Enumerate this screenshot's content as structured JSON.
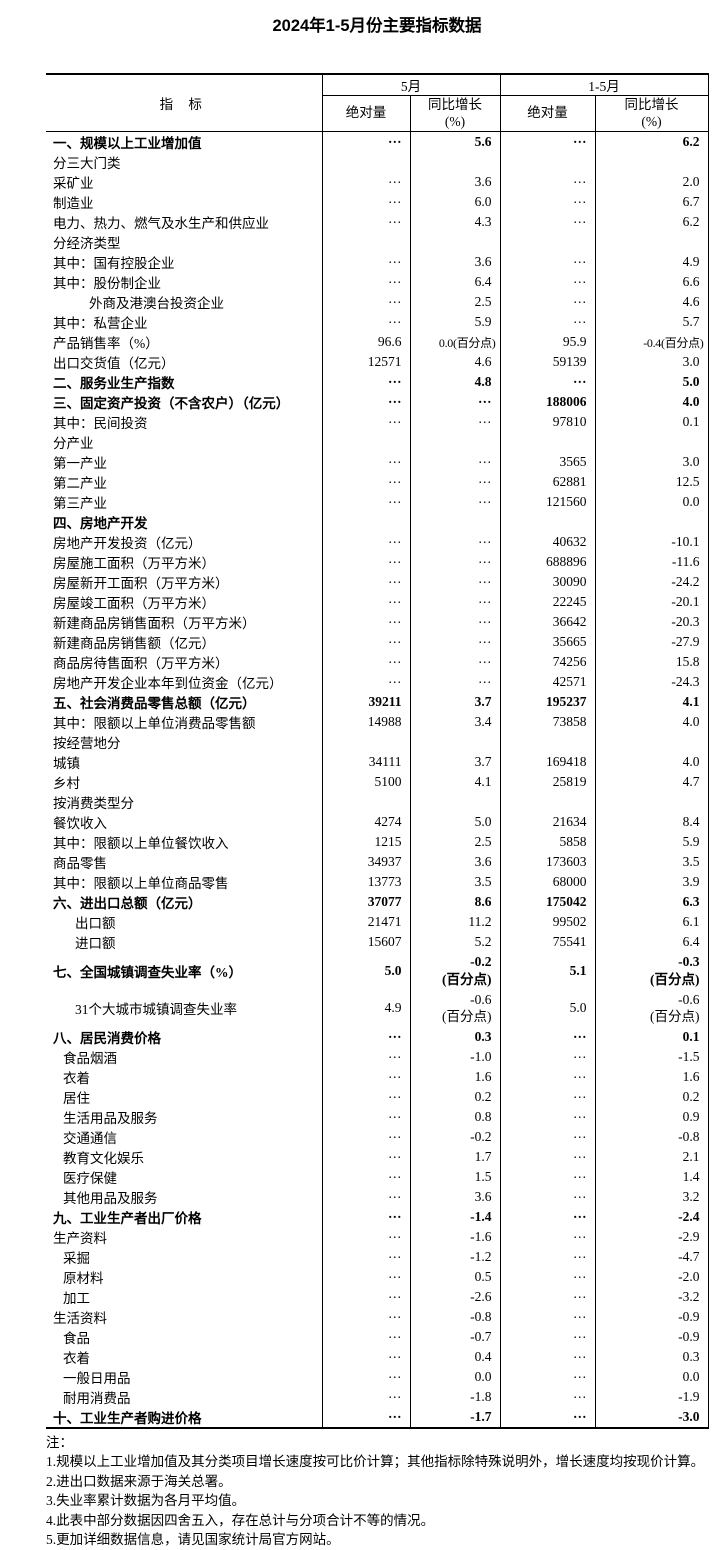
{
  "page": {
    "title": "2024年1-5月份主要指标数据"
  },
  "table": {
    "indicator_header": "指 标",
    "period_groups": [
      {
        "label": "5月"
      },
      {
        "label": "1-5月"
      }
    ],
    "sub_headers": [
      "绝对量",
      "同比增长\n(%)",
      "绝对量",
      "同比增长\n(%)"
    ],
    "rows": [
      {
        "label": "一、规模以上工业增加值",
        "bold": true,
        "indent": 0,
        "tall": false,
        "values": [
          "…",
          "5.6",
          "…",
          "6.2"
        ]
      },
      {
        "label": "分三大门类",
        "bold": false,
        "indent": 0,
        "tall": false,
        "values": [
          "",
          "",
          "",
          ""
        ]
      },
      {
        "label": "采矿业",
        "bold": false,
        "indent": 0,
        "tall": false,
        "values": [
          "…",
          "3.6",
          "…",
          "2.0"
        ]
      },
      {
        "label": "制造业",
        "bold": false,
        "indent": 0,
        "tall": false,
        "values": [
          "…",
          "6.0",
          "…",
          "6.7"
        ]
      },
      {
        "label": "电力、热力、燃气及水生产和供应业",
        "bold": false,
        "indent": 0,
        "tall": false,
        "values": [
          "…",
          "4.3",
          "…",
          "6.2"
        ]
      },
      {
        "label": "分经济类型",
        "bold": false,
        "indent": 0,
        "tall": false,
        "values": [
          "",
          "",
          "",
          ""
        ]
      },
      {
        "label": "其中：国有控股企业",
        "bold": false,
        "indent": 0,
        "tall": false,
        "values": [
          "…",
          "3.6",
          "…",
          "4.9"
        ]
      },
      {
        "label": "其中：股份制企业",
        "bold": false,
        "indent": 0,
        "tall": false,
        "values": [
          "…",
          "6.4",
          "…",
          "6.6"
        ]
      },
      {
        "label": "外商及港澳台投资企业",
        "bold": false,
        "indent": 3,
        "tall": false,
        "values": [
          "…",
          "2.5",
          "…",
          "4.6"
        ]
      },
      {
        "label": "其中：私营企业",
        "bold": false,
        "indent": 0,
        "tall": false,
        "values": [
          "…",
          "5.9",
          "…",
          "5.7"
        ]
      },
      {
        "label": "产品销售率（%）",
        "bold": false,
        "indent": 0,
        "tall": false,
        "values": [
          "96.6",
          "0.0(百分点)",
          "95.9",
          "-0.4(百分点)"
        ]
      },
      {
        "label": "出口交货值（亿元）",
        "bold": false,
        "indent": 0,
        "tall": false,
        "values": [
          "12571",
          "4.6",
          "59139",
          "3.0"
        ]
      },
      {
        "label": "二、服务业生产指数",
        "bold": true,
        "indent": 0,
        "tall": false,
        "values": [
          "…",
          "4.8",
          "…",
          "5.0"
        ]
      },
      {
        "label": "三、固定资产投资（不含农户）（亿元）",
        "bold": true,
        "indent": 0,
        "tall": false,
        "values": [
          "…",
          "…",
          "188006",
          "4.0"
        ]
      },
      {
        "label": "其中：民间投资",
        "bold": false,
        "indent": 0,
        "tall": false,
        "values": [
          "…",
          "…",
          "97810",
          "0.1"
        ]
      },
      {
        "label": "分产业",
        "bold": false,
        "indent": 0,
        "tall": false,
        "values": [
          "",
          "",
          "",
          ""
        ]
      },
      {
        "label": "第一产业",
        "bold": false,
        "indent": 0,
        "tall": false,
        "values": [
          "…",
          "…",
          "3565",
          "3.0"
        ]
      },
      {
        "label": "第二产业",
        "bold": false,
        "indent": 0,
        "tall": false,
        "values": [
          "…",
          "…",
          "62881",
          "12.5"
        ]
      },
      {
        "label": "第三产业",
        "bold": false,
        "indent": 0,
        "tall": false,
        "values": [
          "…",
          "…",
          "121560",
          "0.0"
        ]
      },
      {
        "label": "四、房地产开发",
        "bold": true,
        "indent": 0,
        "tall": false,
        "values": [
          "",
          "",
          "",
          ""
        ]
      },
      {
        "label": "房地产开发投资（亿元）",
        "bold": false,
        "indent": 0,
        "tall": false,
        "values": [
          "…",
          "…",
          "40632",
          "-10.1"
        ]
      },
      {
        "label": "房屋施工面积（万平方米）",
        "bold": false,
        "indent": 0,
        "tall": false,
        "values": [
          "…",
          "…",
          "688896",
          "-11.6"
        ]
      },
      {
        "label": "房屋新开工面积（万平方米）",
        "bold": false,
        "indent": 0,
        "tall": false,
        "values": [
          "…",
          "…",
          "30090",
          "-24.2"
        ]
      },
      {
        "label": "房屋竣工面积（万平方米）",
        "bold": false,
        "indent": 0,
        "tall": false,
        "values": [
          "…",
          "…",
          "22245",
          "-20.1"
        ]
      },
      {
        "label": "新建商品房销售面积（万平方米）",
        "bold": false,
        "indent": 0,
        "tall": false,
        "values": [
          "…",
          "…",
          "36642",
          "-20.3"
        ]
      },
      {
        "label": "新建商品房销售额（亿元）",
        "bold": false,
        "indent": 0,
        "tall": false,
        "values": [
          "…",
          "…",
          "35665",
          "-27.9"
        ]
      },
      {
        "label": "商品房待售面积（万平方米）",
        "bold": false,
        "indent": 0,
        "tall": false,
        "values": [
          "…",
          "…",
          "74256",
          "15.8"
        ]
      },
      {
        "label": "房地产开发企业本年到位资金（亿元）",
        "bold": false,
        "indent": 0,
        "tall": false,
        "values": [
          "…",
          "…",
          "42571",
          "-24.3"
        ]
      },
      {
        "label": "五、社会消费品零售总额（亿元）",
        "bold": true,
        "indent": 0,
        "tall": false,
        "values": [
          "39211",
          "3.7",
          "195237",
          "4.1"
        ]
      },
      {
        "label": "其中：限额以上单位消费品零售额",
        "bold": false,
        "indent": 0,
        "tall": false,
        "values": [
          "14988",
          "3.4",
          "73858",
          "4.0"
        ]
      },
      {
        "label": "按经营地分",
        "bold": false,
        "indent": 0,
        "tall": false,
        "values": [
          "",
          "",
          "",
          ""
        ]
      },
      {
        "label": "城镇",
        "bold": false,
        "indent": 0,
        "tall": false,
        "values": [
          "34111",
          "3.7",
          "169418",
          "4.0"
        ]
      },
      {
        "label": "乡村",
        "bold": false,
        "indent": 0,
        "tall": false,
        "values": [
          "5100",
          "4.1",
          "25819",
          "4.7"
        ]
      },
      {
        "label": "按消费类型分",
        "bold": false,
        "indent": 0,
        "tall": false,
        "values": [
          "",
          "",
          "",
          ""
        ]
      },
      {
        "label": "餐饮收入",
        "bold": false,
        "indent": 0,
        "tall": false,
        "values": [
          "4274",
          "5.0",
          "21634",
          "8.4"
        ]
      },
      {
        "label": "其中：限额以上单位餐饮收入",
        "bold": false,
        "indent": 0,
        "tall": false,
        "values": [
          "1215",
          "2.5",
          "5858",
          "5.9"
        ]
      },
      {
        "label": "商品零售",
        "bold": false,
        "indent": 0,
        "tall": false,
        "values": [
          "34937",
          "3.6",
          "173603",
          "3.5"
        ]
      },
      {
        "label": "其中：限额以上单位商品零售",
        "bold": false,
        "indent": 0,
        "tall": false,
        "values": [
          "13773",
          "3.5",
          "68000",
          "3.9"
        ]
      },
      {
        "label": "六、进出口总额（亿元）",
        "bold": true,
        "indent": 0,
        "tall": false,
        "values": [
          "37077",
          "8.6",
          "175042",
          "6.3"
        ]
      },
      {
        "label": "出口额",
        "bold": false,
        "indent": 2,
        "tall": false,
        "values": [
          "21471",
          "11.2",
          "99502",
          "6.1"
        ]
      },
      {
        "label": "进口额",
        "bold": false,
        "indent": 2,
        "tall": false,
        "values": [
          "15607",
          "5.2",
          "75541",
          "6.4"
        ]
      },
      {
        "label": "七、全国城镇调查失业率（%）",
        "bold": true,
        "indent": 0,
        "tall": true,
        "values": [
          "5.0",
          "-0.2\n(百分点)",
          "5.1",
          "-0.3\n(百分点)"
        ]
      },
      {
        "label": "31个大城市城镇调查失业率",
        "bold": false,
        "indent": 2,
        "tall": true,
        "values": [
          "4.9",
          "-0.6\n(百分点)",
          "5.0",
          "-0.6\n(百分点)"
        ]
      },
      {
        "label": "八、居民消费价格",
        "bold": true,
        "indent": 0,
        "tall": false,
        "values": [
          "…",
          "0.3",
          "…",
          "0.1"
        ]
      },
      {
        "label": "食品烟酒",
        "bold": false,
        "indent": 1,
        "tall": false,
        "values": [
          "…",
          "-1.0",
          "…",
          "-1.5"
        ]
      },
      {
        "label": "衣着",
        "bold": false,
        "indent": 1,
        "tall": false,
        "values": [
          "…",
          "1.6",
          "…",
          "1.6"
        ]
      },
      {
        "label": "居住",
        "bold": false,
        "indent": 1,
        "tall": false,
        "values": [
          "…",
          "0.2",
          "…",
          "0.2"
        ]
      },
      {
        "label": "生活用品及服务",
        "bold": false,
        "indent": 1,
        "tall": false,
        "values": [
          "…",
          "0.8",
          "…",
          "0.9"
        ]
      },
      {
        "label": "交通通信",
        "bold": false,
        "indent": 1,
        "tall": false,
        "values": [
          "…",
          "-0.2",
          "…",
          "-0.8"
        ]
      },
      {
        "label": "教育文化娱乐",
        "bold": false,
        "indent": 1,
        "tall": false,
        "values": [
          "…",
          "1.7",
          "…",
          "2.1"
        ]
      },
      {
        "label": "医疗保健",
        "bold": false,
        "indent": 1,
        "tall": false,
        "values": [
          "…",
          "1.5",
          "…",
          "1.4"
        ]
      },
      {
        "label": "其他用品及服务",
        "bold": false,
        "indent": 1,
        "tall": false,
        "values": [
          "…",
          "3.6",
          "…",
          "3.2"
        ]
      },
      {
        "label": "九、工业生产者出厂价格",
        "bold": true,
        "indent": 0,
        "tall": false,
        "values": [
          "…",
          "-1.4",
          "…",
          "-2.4"
        ]
      },
      {
        "label": "生产资料",
        "bold": false,
        "indent": 0,
        "tall": false,
        "values": [
          "…",
          "-1.6",
          "…",
          "-2.9"
        ]
      },
      {
        "label": "采掘",
        "bold": false,
        "indent": 1,
        "tall": false,
        "values": [
          "…",
          "-1.2",
          "…",
          "-4.7"
        ]
      },
      {
        "label": "原材料",
        "bold": false,
        "indent": 1,
        "tall": false,
        "values": [
          "…",
          "0.5",
          "…",
          "-2.0"
        ]
      },
      {
        "label": "加工",
        "bold": false,
        "indent": 1,
        "tall": false,
        "values": [
          "…",
          "-2.6",
          "…",
          "-3.2"
        ]
      },
      {
        "label": "生活资料",
        "bold": false,
        "indent": 0,
        "tall": false,
        "values": [
          "…",
          "-0.8",
          "…",
          "-0.9"
        ]
      },
      {
        "label": "食品",
        "bold": false,
        "indent": 1,
        "tall": false,
        "values": [
          "…",
          "-0.7",
          "…",
          "-0.9"
        ]
      },
      {
        "label": "衣着",
        "bold": false,
        "indent": 1,
        "tall": false,
        "values": [
          "…",
          "0.4",
          "…",
          "0.3"
        ]
      },
      {
        "label": "一般日用品",
        "bold": false,
        "indent": 1,
        "tall": false,
        "values": [
          "…",
          "0.0",
          "…",
          "0.0"
        ]
      },
      {
        "label": "耐用消费品",
        "bold": false,
        "indent": 1,
        "tall": false,
        "values": [
          "…",
          "-1.8",
          "…",
          "-1.9"
        ]
      },
      {
        "label": "十、工业生产者购进价格",
        "bold": true,
        "indent": 0,
        "tall": false,
        "values": [
          "…",
          "-1.7",
          "…",
          "-3.0"
        ]
      }
    ]
  },
  "notes": {
    "label": "注：",
    "items": [
      "1.规模以上工业增加值及其分类项目增长速度按可比价计算；其他指标除特殊说明外，增长速度均按现价计算。",
      "2.进出口数据来源于海关总署。",
      "3.失业率累计数据为各月平均值。",
      "4.此表中部分数据因四舍五入，存在总计与分项合计不等的情况。",
      "5.更加详细数据信息，请见国家统计局官方网站。"
    ]
  }
}
